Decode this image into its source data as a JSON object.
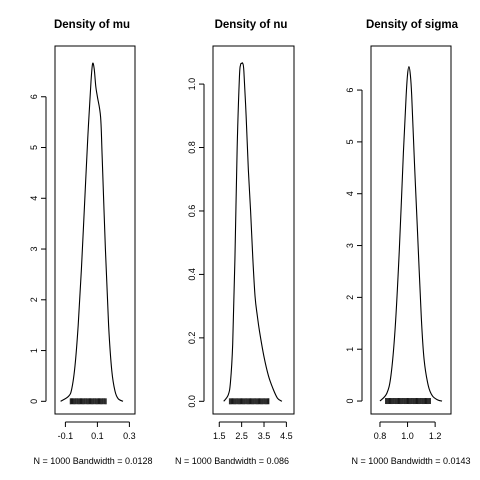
{
  "chart_data": [
    {
      "type": "line",
      "title": "Density of mu",
      "subtitle": "N = 1000   Bandwidth = 0.0128",
      "xlabel": "",
      "ylabel": "",
      "xlim": [
        -0.165,
        0.335
      ],
      "ylim": [
        -0.25,
        7.0
      ],
      "xticks": [
        -0.1,
        0.1,
        0.3
      ],
      "xtick_labels": [
        "-0.1",
        "0.1",
        "0.3"
      ],
      "yticks": [
        0,
        1,
        2,
        3,
        4,
        5,
        6
      ],
      "ytick_labels": [
        "0",
        "1",
        "2",
        "3",
        "4",
        "5",
        "6"
      ],
      "grid": false,
      "rug": [
        -0.07,
        0.16
      ],
      "x": [
        -0.13,
        -0.08,
        -0.06,
        -0.04,
        -0.02,
        0.0,
        0.02,
        0.04,
        0.06,
        0.07,
        0.08,
        0.09,
        0.1,
        0.12,
        0.13,
        0.15,
        0.17,
        0.19,
        0.21,
        0.23,
        0.26
      ],
      "y": [
        0.0,
        0.1,
        0.25,
        0.7,
        1.5,
        2.6,
        3.9,
        5.2,
        6.3,
        6.65,
        6.55,
        6.2,
        6.0,
        5.6,
        4.8,
        3.0,
        1.5,
        0.6,
        0.2,
        0.05,
        0.0
      ]
    },
    {
      "type": "line",
      "title": "Density of nu",
      "subtitle": "N = 1000   Bandwidth = 0.086",
      "xlabel": "",
      "ylabel": "",
      "xlim": [
        1.22,
        4.84
      ],
      "ylim": [
        -0.04,
        1.12
      ],
      "xticks": [
        1.5,
        2.5,
        3.5,
        4.5
      ],
      "xtick_labels": [
        "1.5",
        "2.5",
        "3.5",
        "4.5"
      ],
      "yticks": [
        0.0,
        0.2,
        0.4,
        0.6,
        0.8,
        1.0
      ],
      "ytick_labels": [
        "0.0",
        "0.2",
        "0.4",
        "0.6",
        "0.8",
        "1.0"
      ],
      "grid": false,
      "rug": [
        1.95,
        3.75
      ],
      "x": [
        1.7,
        1.9,
        2.0,
        2.1,
        2.2,
        2.3,
        2.4,
        2.45,
        2.5,
        2.55,
        2.6,
        2.7,
        2.8,
        2.9,
        3.0,
        3.1,
        3.2,
        3.3,
        3.5,
        3.7,
        3.9,
        4.1,
        4.3
      ],
      "y": [
        0.0,
        0.02,
        0.06,
        0.18,
        0.45,
        0.8,
        1.02,
        1.06,
        1.065,
        1.065,
        1.04,
        0.9,
        0.73,
        0.6,
        0.45,
        0.33,
        0.27,
        0.22,
        0.14,
        0.08,
        0.04,
        0.01,
        0.0
      ]
    },
    {
      "type": "line",
      "title": "Density of sigma",
      "subtitle": "N = 1000   Bandwidth = 0.0143",
      "xlabel": "",
      "ylabel": "",
      "xlim": [
        0.735,
        1.315
      ],
      "ylim": [
        -0.25,
        6.85
      ],
      "xticks": [
        0.8,
        1.0,
        1.2
      ],
      "xtick_labels": [
        "0.8",
        "1.0",
        "1.2"
      ],
      "yticks": [
        0,
        1,
        2,
        3,
        4,
        5,
        6
      ],
      "ytick_labels": [
        "0",
        "1",
        "2",
        "3",
        "4",
        "5",
        "6"
      ],
      "grid": false,
      "rug": [
        0.84,
        1.17
      ],
      "x": [
        0.8,
        0.85,
        0.88,
        0.91,
        0.94,
        0.97,
        0.99,
        1.0,
        1.01,
        1.02,
        1.03,
        1.05,
        1.07,
        1.1,
        1.12,
        1.15,
        1.18,
        1.22,
        1.25
      ],
      "y": [
        0.0,
        0.15,
        0.5,
        1.4,
        2.9,
        4.8,
        5.9,
        6.3,
        6.45,
        6.3,
        5.9,
        4.6,
        3.4,
        1.6,
        0.8,
        0.3,
        0.1,
        0.02,
        0.0
      ]
    }
  ]
}
